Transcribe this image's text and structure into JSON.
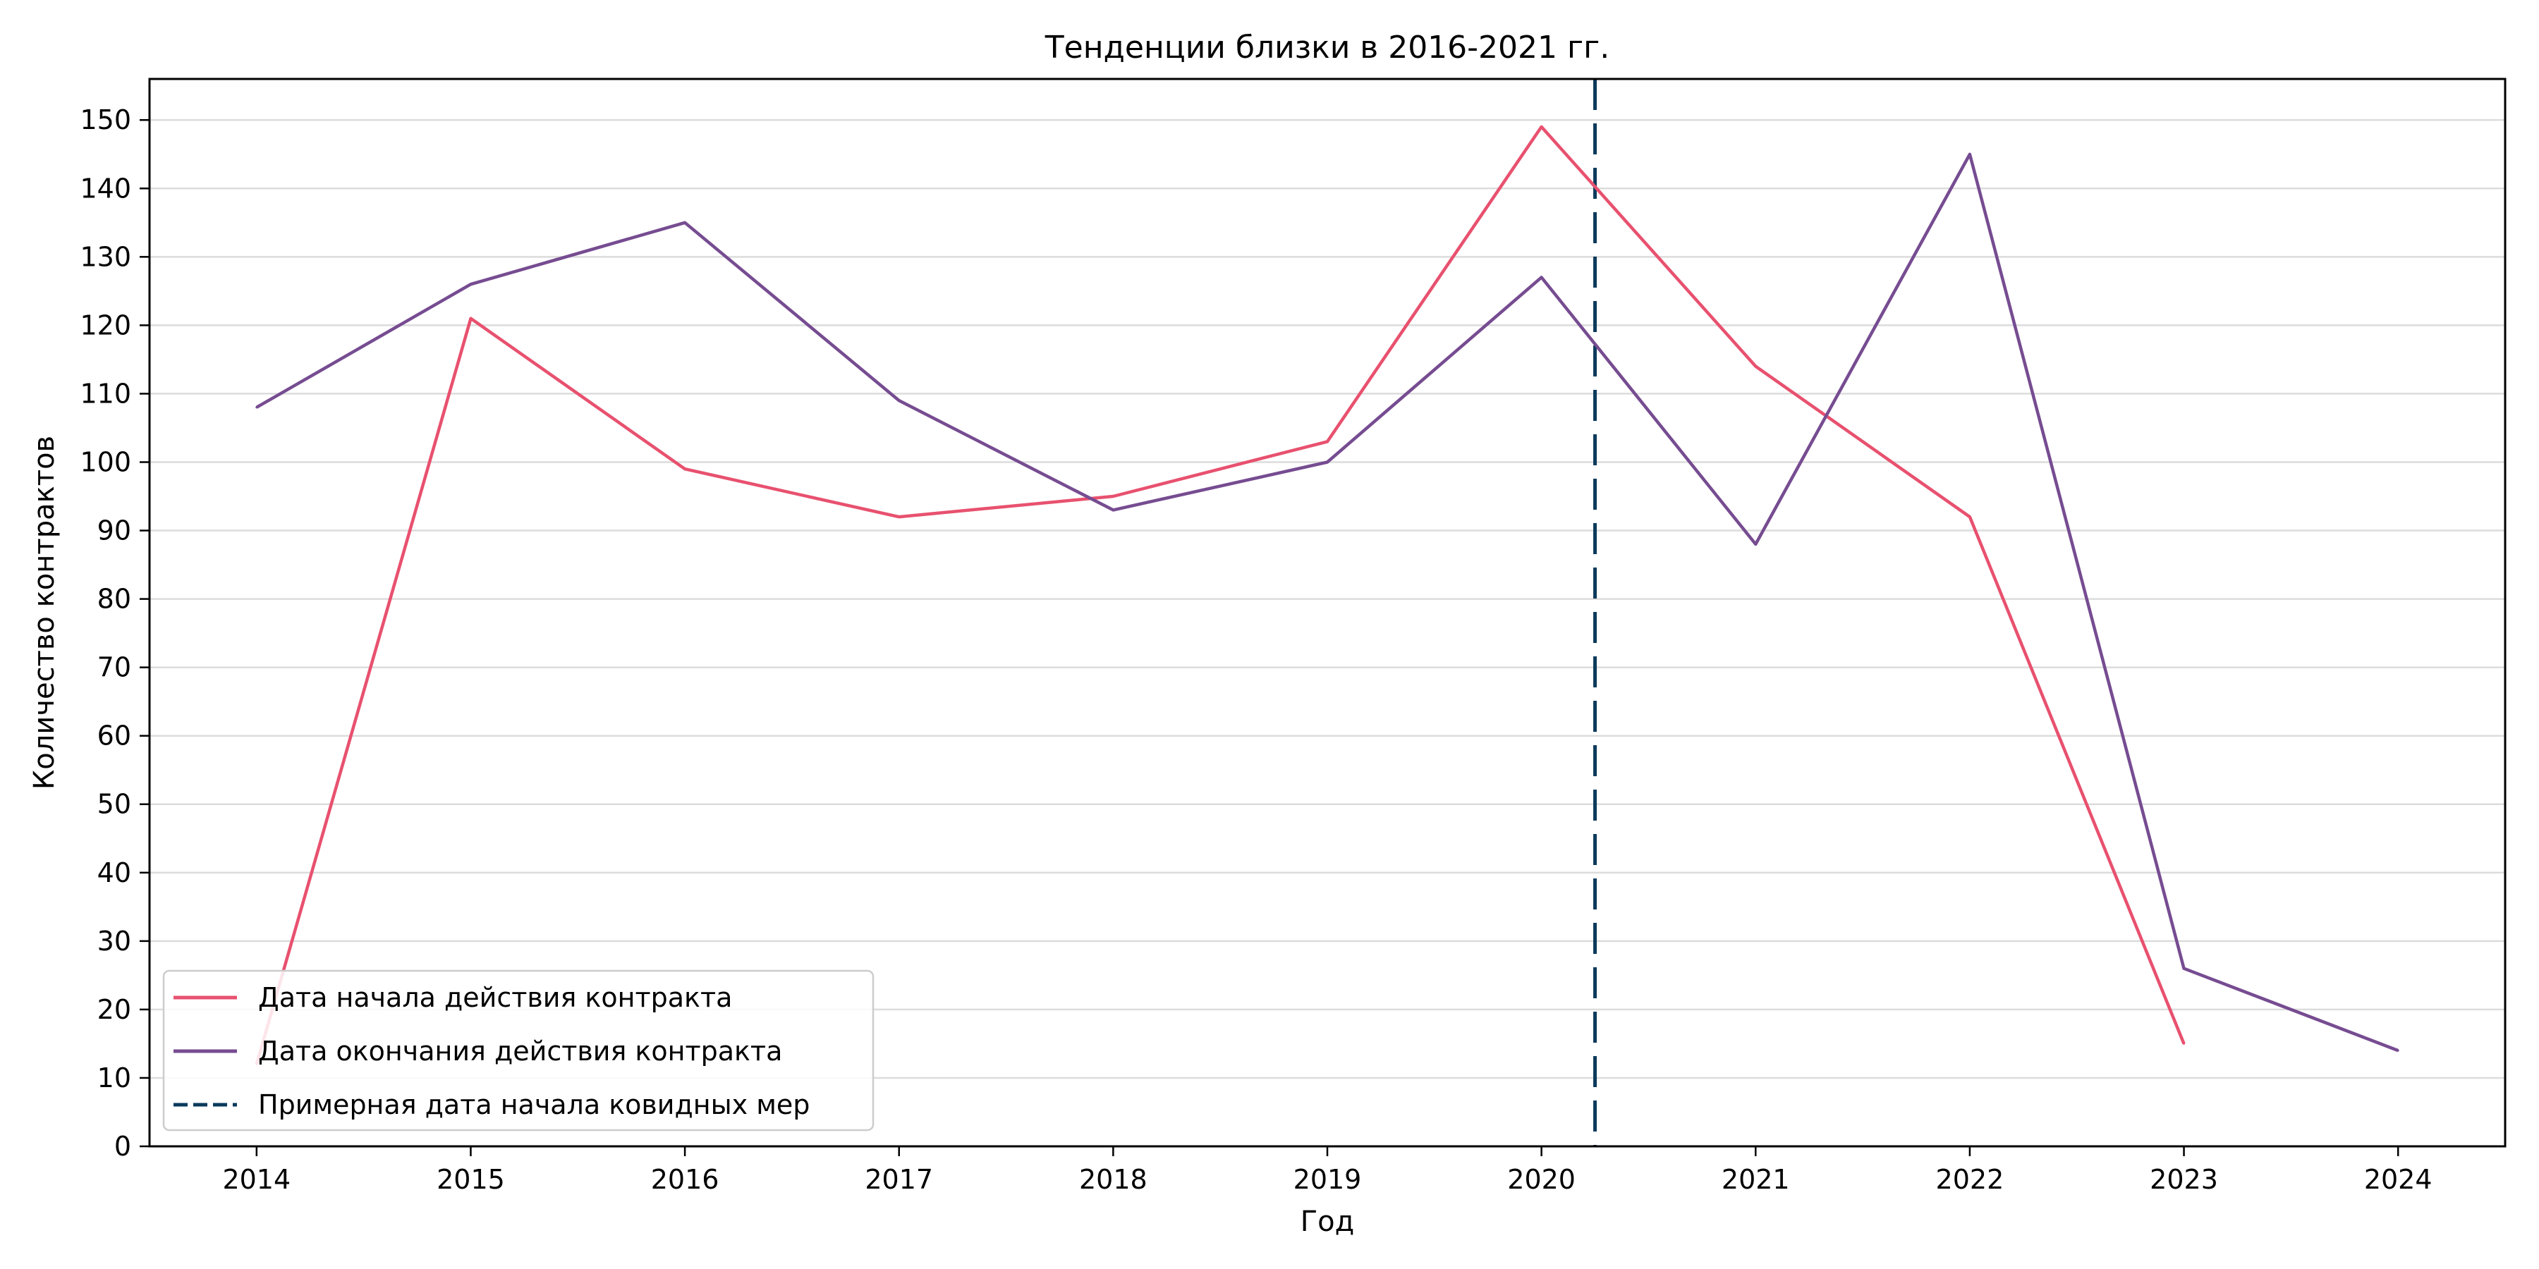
{
  "chart_data": {
    "type": "line",
    "title": "Тенденции близки в 2016-2021 гг.",
    "xlabel": "Год",
    "ylabel": "Количество контрактов",
    "x": [
      2014,
      2015,
      2016,
      2017,
      2018,
      2019,
      2020,
      2021,
      2022,
      2023,
      2024
    ],
    "xlim": [
      2013.5,
      2024.5
    ],
    "ylim": [
      0,
      156
    ],
    "y_ticks": [
      0,
      10,
      20,
      30,
      40,
      50,
      60,
      70,
      80,
      90,
      100,
      110,
      120,
      130,
      140,
      150
    ],
    "grid": "horizontal",
    "legend_position": "lower-left",
    "series": [
      {
        "name": "Дата начала действия контракта",
        "color": "#e8516f",
        "x": [
          2014,
          2015,
          2016,
          2017,
          2018,
          2019,
          2020,
          2021,
          2022,
          2023
        ],
        "values": [
          12,
          121,
          99,
          92,
          95,
          103,
          149,
          114,
          92,
          15
        ]
      },
      {
        "name": "Дата окончания действия контракта",
        "color": "#764c91",
        "x": [
          2014,
          2015,
          2016,
          2017,
          2018,
          2019,
          2020,
          2021,
          2022,
          2023,
          2024
        ],
        "values": [
          108,
          126,
          135,
          109,
          93,
          100,
          127,
          88,
          145,
          26,
          14
        ]
      }
    ],
    "reference_lines": [
      {
        "name": "Примерная дата начала ковидных мер",
        "color": "#0b3a5b",
        "style": "dashed",
        "x": 2020.25
      }
    ]
  }
}
